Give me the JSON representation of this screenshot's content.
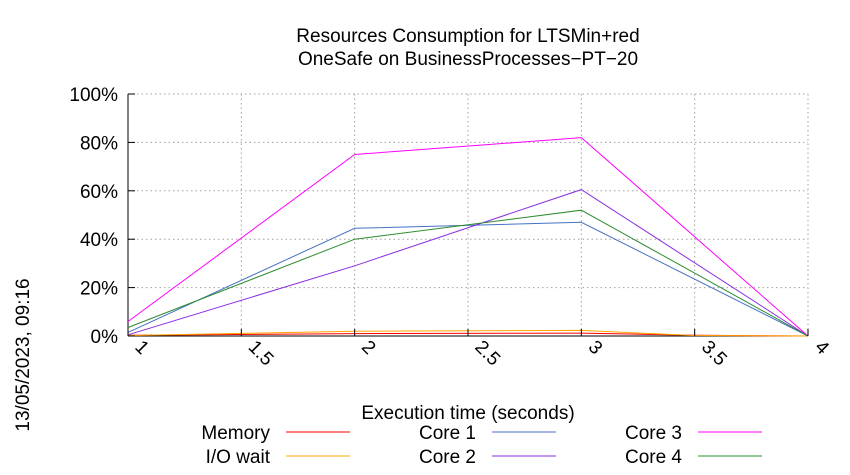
{
  "chart_data": {
    "type": "line",
    "title_line1": "Resources Consumption for LTSMin+red",
    "title_line2": "OneSafe on BusinessProcesses−PT−20",
    "xlabel": "Execution time (seconds)",
    "ylabel": "",
    "side_label": "13/05/2023, 09:16",
    "xlim": [
      1,
      4
    ],
    "ylim": [
      0,
      100
    ],
    "x_ticks": [
      1,
      1.5,
      2,
      2.5,
      3,
      3.5,
      4
    ],
    "x_tick_labels": [
      "1",
      "1.5",
      "2",
      "2.5",
      "3",
      "3.5",
      "4"
    ],
    "y_ticks": [
      0,
      20,
      40,
      60,
      80,
      100
    ],
    "y_tick_labels": [
      "0%",
      "20%",
      "40%",
      "60%",
      "80%",
      "100%"
    ],
    "grid": true,
    "legend_position": "bottom",
    "series": [
      {
        "name": "Memory",
        "color": "#ff0000",
        "x": [
          1,
          2,
          3,
          3.5,
          4
        ],
        "values": [
          0.3,
          1.0,
          1.2,
          0.3,
          0
        ]
      },
      {
        "name": "I/O wait",
        "color": "#ffa500",
        "x": [
          1,
          2,
          3,
          3.5,
          4
        ],
        "values": [
          0.2,
          2.0,
          2.3,
          0.2,
          0
        ]
      },
      {
        "name": "Core 1",
        "color": "#4472c4",
        "x": [
          1,
          2,
          3,
          4
        ],
        "values": [
          1.5,
          44.5,
          47,
          0
        ]
      },
      {
        "name": "Core 2",
        "color": "#8a2be2",
        "x": [
          1,
          2,
          3,
          4
        ],
        "values": [
          0.5,
          29,
          60.5,
          0
        ]
      },
      {
        "name": "Core 3",
        "color": "#ff00ff",
        "x": [
          1,
          2,
          3,
          4
        ],
        "values": [
          6,
          75,
          82,
          0
        ]
      },
      {
        "name": "Core 4",
        "color": "#2e8b2e",
        "x": [
          1,
          2,
          3,
          4
        ],
        "values": [
          3.5,
          40,
          52,
          0
        ]
      }
    ]
  }
}
